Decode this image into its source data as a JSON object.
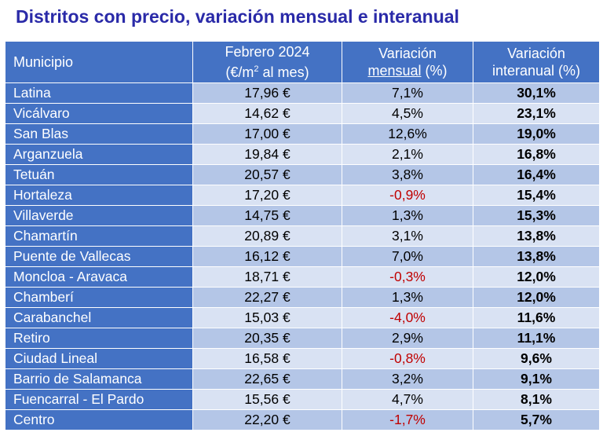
{
  "title": "Distritos con precio, variación mensual e interanual",
  "header": {
    "col1": "Municipio",
    "col2_line1": "Febrero 2024",
    "col2_line2_pre": "(€/m",
    "col2_line2_sup": "2",
    "col2_line2_post": " al mes)",
    "col3_line1": "Variación",
    "col3_line2_u": "mensual",
    "col3_line2_post": " (%)",
    "col4_line1": "Variación",
    "col4_line2": "interanual (%)"
  },
  "rows": [
    {
      "municipio": "Latina",
      "precio": "17,96 €",
      "mensual": "7,1%",
      "interanual": "30,1%"
    },
    {
      "municipio": "Vicálvaro",
      "precio": "14,62 €",
      "mensual": "4,5%",
      "interanual": "23,1%"
    },
    {
      "municipio": "San Blas",
      "precio": "17,00 €",
      "mensual": "12,6%",
      "interanual": "19,0%"
    },
    {
      "municipio": "Arganzuela",
      "precio": "19,84 €",
      "mensual": "2,1%",
      "interanual": "16,8%"
    },
    {
      "municipio": "Tetuán",
      "precio": "20,57 €",
      "mensual": "3,8%",
      "interanual": "16,4%"
    },
    {
      "municipio": "Hortaleza",
      "precio": "17,20 €",
      "mensual": "-0,9%",
      "interanual": "15,4%"
    },
    {
      "municipio": "Villaverde",
      "precio": "14,75 €",
      "mensual": "1,3%",
      "interanual": "15,3%"
    },
    {
      "municipio": "Chamartín",
      "precio": "20,89 €",
      "mensual": "3,1%",
      "interanual": "13,8%"
    },
    {
      "municipio": "Puente de Vallecas",
      "precio": "16,12 €",
      "mensual": "7,0%",
      "interanual": "13,8%"
    },
    {
      "municipio": "Moncloa - Aravaca",
      "precio": "18,71 €",
      "mensual": "-0,3%",
      "interanual": "12,0%"
    },
    {
      "municipio": "Chamberí",
      "precio": "22,27 €",
      "mensual": "1,3%",
      "interanual": "12,0%"
    },
    {
      "municipio": "Carabanchel",
      "precio": "15,03 €",
      "mensual": "-4,0%",
      "interanual": "11,6%"
    },
    {
      "municipio": "Retiro",
      "precio": "20,35 €",
      "mensual": "2,9%",
      "interanual": "11,1%"
    },
    {
      "municipio": "Ciudad Lineal",
      "precio": "16,58 €",
      "mensual": "-0,8%",
      "interanual": "9,6%"
    },
    {
      "municipio": "Barrio de Salamanca",
      "precio": "22,65 €",
      "mensual": "3,2%",
      "interanual": "9,1%"
    },
    {
      "municipio": "Fuencarral - El Pardo",
      "precio": "15,56 €",
      "mensual": "4,7%",
      "interanual": "8,1%"
    },
    {
      "municipio": "Centro",
      "precio": "22,20 €",
      "mensual": "-1,7%",
      "interanual": "5,7%"
    }
  ],
  "colors": {
    "header_bg": "#4472c4",
    "row_odd": "#b4c6e7",
    "row_even": "#d9e2f3",
    "negative": "#c00000",
    "title": "#2a2aa8"
  }
}
